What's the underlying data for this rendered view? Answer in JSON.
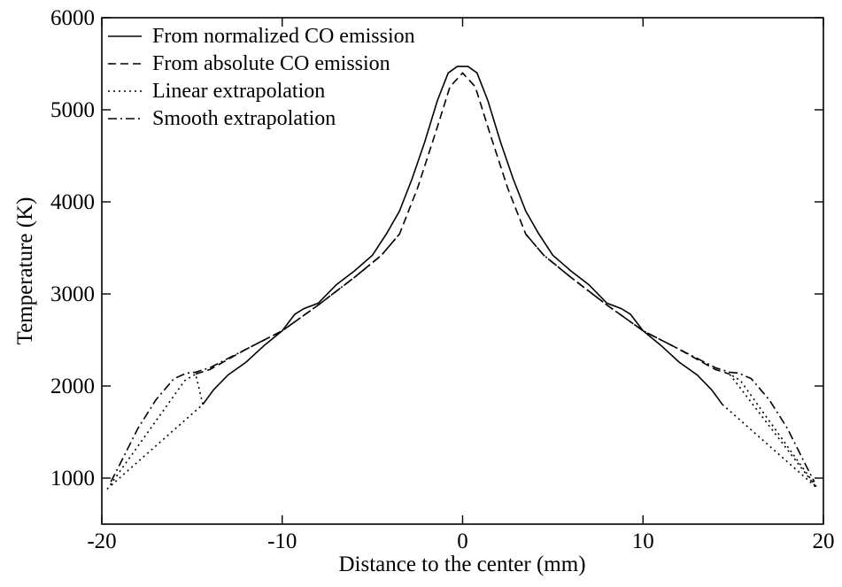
{
  "chart_data": {
    "type": "line",
    "title": "",
    "xlabel": "Distance to the center (mm)",
    "ylabel": "Temperature (K)",
    "xlim": [
      -20,
      20
    ],
    "ylim": [
      500,
      6000
    ],
    "xticks": [
      -20,
      -10,
      0,
      10,
      20
    ],
    "yticks": [
      1000,
      2000,
      3000,
      4000,
      5000,
      6000
    ],
    "grid": false,
    "legend_position": "top-left",
    "series": [
      {
        "name": "From normalized CO emission",
        "style": "solid",
        "x": [
          -14.4,
          -13.8,
          -13,
          -12,
          -11,
          -10,
          -9.3,
          -8.8,
          -8,
          -7,
          -6,
          -5,
          -4.2,
          -3.5,
          -2.8,
          -2.1,
          -1.4,
          -0.8,
          -0.3,
          0,
          0.3,
          0.8,
          1.4,
          2.1,
          2.8,
          3.5,
          4.2,
          5,
          6,
          7,
          8,
          8.8,
          9.3,
          10,
          11,
          12,
          13,
          13.8,
          14.4
        ],
        "y": [
          1800,
          1960,
          2120,
          2260,
          2440,
          2600,
          2780,
          2840,
          2900,
          3100,
          3250,
          3420,
          3660,
          3900,
          4250,
          4650,
          5100,
          5400,
          5470,
          5470,
          5470,
          5400,
          5100,
          4650,
          4250,
          3900,
          3660,
          3420,
          3250,
          3100,
          2900,
          2840,
          2780,
          2600,
          2440,
          2260,
          2120,
          1960,
          1800
        ]
      },
      {
        "name": "From absolute CO emission",
        "style": "dashed",
        "x": [
          -14.8,
          -14,
          -12,
          -10,
          -8,
          -6,
          -4.5,
          -3.5,
          -2.5,
          -1.5,
          -0.7,
          0,
          0.7,
          1.5,
          2.5,
          3.5,
          4.5,
          6,
          8,
          10,
          12,
          14,
          14.8
        ],
        "y": [
          2130,
          2180,
          2400,
          2600,
          2880,
          3180,
          3420,
          3650,
          4150,
          4750,
          5250,
          5400,
          5250,
          4750,
          4150,
          3650,
          3420,
          3180,
          2880,
          2600,
          2400,
          2180,
          2130
        ]
      },
      {
        "name": "Linear extrapolation",
        "style": "dotted",
        "x": [
          -19.7,
          -15.4,
          -14.8,
          -14.4,
          -19.6
        ],
        "y": [
          880,
          2060,
          2130,
          1800,
          900
        ],
        "x_right": [
          14.4,
          19.6,
          14.8,
          15.4,
          19.7
        ],
        "y_right": [
          1800,
          900,
          2130,
          2060,
          880
        ]
      },
      {
        "name": "Smooth extrapolation",
        "style": "dashdot",
        "x": [
          -19.5,
          -19,
          -18,
          -17,
          -16,
          -15.3,
          -14.8,
          -14,
          -12,
          -10,
          -8,
          -6,
          -4.5,
          -3.5
        ],
        "y": [
          960,
          1150,
          1540,
          1850,
          2080,
          2140,
          2150,
          2200,
          2400,
          2600,
          2880,
          3180,
          3420,
          3650
        ],
        "x_right": [
          3.5,
          4.5,
          6,
          8,
          10,
          12,
          14,
          14.8,
          15.3,
          16,
          17,
          18,
          19,
          19.5
        ],
        "y_right": [
          3650,
          3420,
          3180,
          2880,
          2600,
          2400,
          2200,
          2150,
          2140,
          2080,
          1850,
          1540,
          1150,
          960
        ]
      }
    ]
  }
}
